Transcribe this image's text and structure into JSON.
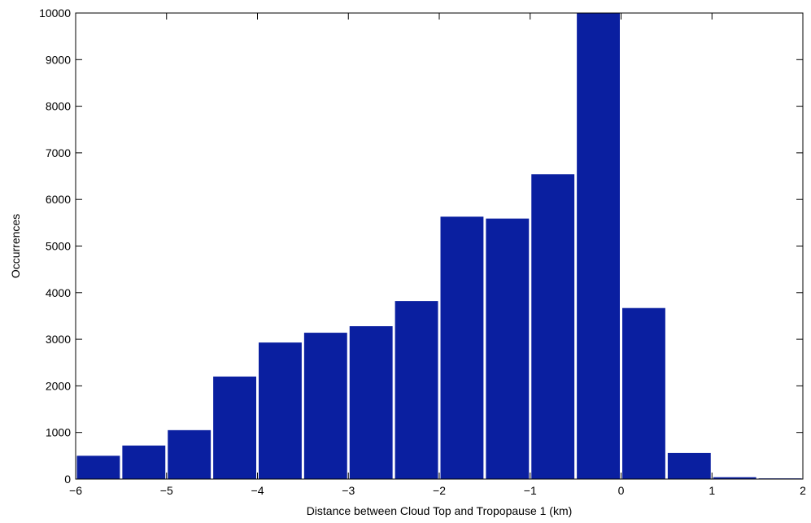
{
  "chart_data": {
    "type": "bar",
    "title": "",
    "xlabel": "Distance between Cloud Top and Tropopause 1 (km)",
    "ylabel": "Occurrences",
    "xlim": [
      -6,
      2
    ],
    "ylim": [
      0,
      10000
    ],
    "bar_width": 0.5,
    "bar_color": "#0a1fa0",
    "grid": false,
    "legend": "none",
    "x": [
      -5.75,
      -5.25,
      -4.75,
      -4.25,
      -3.75,
      -3.25,
      -2.75,
      -2.25,
      -1.75,
      -1.25,
      -0.75,
      -0.25,
      0.25,
      0.75,
      1.25,
      1.75
    ],
    "values": [
      500,
      720,
      1050,
      2200,
      2930,
      3140,
      3280,
      3820,
      5630,
      5590,
      6540,
      10000,
      3670,
      560,
      40,
      15
    ],
    "x_ticks": [
      -6,
      -5,
      -4,
      -3,
      -2,
      -1,
      0,
      1,
      2
    ],
    "x_tick_labels": [
      "−6",
      "−5",
      "−4",
      "−3",
      "−2",
      "−1",
      "0",
      "1",
      "2"
    ],
    "y_ticks": [
      0,
      1000,
      2000,
      3000,
      4000,
      5000,
      6000,
      7000,
      8000,
      9000,
      10000
    ],
    "y_tick_labels": [
      "0",
      "1000",
      "2000",
      "3000",
      "4000",
      "5000",
      "6000",
      "7000",
      "8000",
      "9000",
      "10000"
    ]
  }
}
